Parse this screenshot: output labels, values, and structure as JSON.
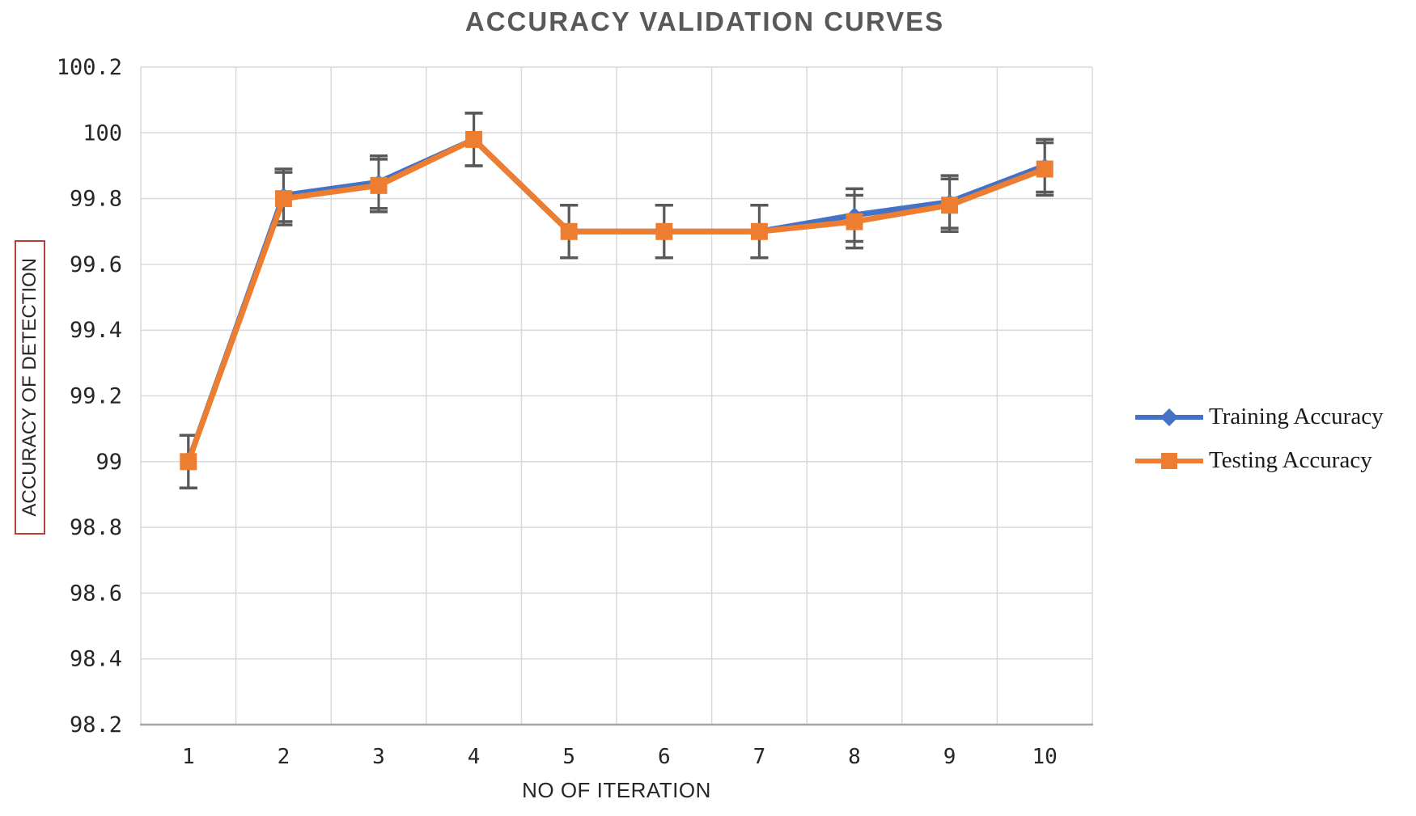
{
  "chart_data": {
    "type": "line",
    "title": "ACCURACY VALIDATION CURVES",
    "xlabel": "NO OF ITERATION",
    "ylabel": "ACCURACY OF DETECTION",
    "x": [
      1,
      2,
      3,
      4,
      5,
      6,
      7,
      8,
      9,
      10
    ],
    "ylim": [
      98.2,
      100.2
    ],
    "ytick_step": 0.2,
    "grid": true,
    "legend_position": "right",
    "error_bar_plus_minus": 0.08,
    "series": [
      {
        "name": "Training Accuracy",
        "marker": "diamond",
        "color": "#4472C4",
        "values": [
          99.0,
          99.81,
          99.85,
          99.98,
          99.7,
          99.7,
          99.7,
          99.75,
          99.79,
          99.9
        ]
      },
      {
        "name": "Testing Accuracy",
        "marker": "square",
        "color": "#ED7D31",
        "values": [
          99.0,
          99.8,
          99.84,
          99.98,
          99.7,
          99.7,
          99.7,
          99.73,
          99.78,
          99.89
        ]
      }
    ],
    "colors": {
      "gridline": "#D9D9D9",
      "axis_line": "#A6A6A6",
      "error_bar": "#595959",
      "title": "#595959",
      "tick_label": "#262626",
      "ylabel_box_border": "#B84038"
    }
  }
}
